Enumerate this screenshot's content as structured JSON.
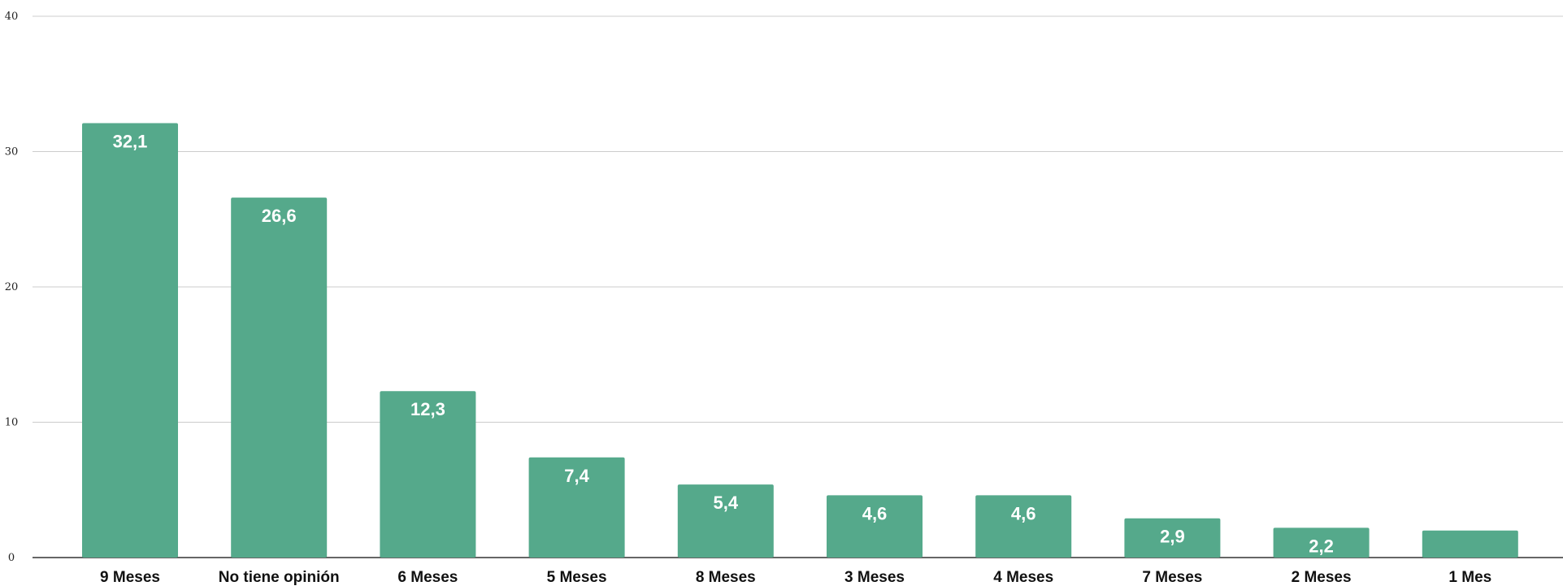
{
  "chart_data": {
    "type": "bar",
    "title": "",
    "xlabel": "",
    "ylabel": "",
    "categories": [
      "9 Meses",
      "No tiene opinión",
      "6 Meses",
      "5 Meses",
      "8 Meses",
      "3 Meses",
      "4 Meses",
      "7 Meses",
      "2 Meses",
      "1 Mes"
    ],
    "values": [
      32.1,
      26.6,
      12.3,
      7.4,
      5.4,
      4.6,
      4.6,
      2.9,
      2.2,
      2.0
    ],
    "data_labels": [
      "32,1",
      "26,6",
      "12,3",
      "7,4",
      "5,4",
      "4,6",
      "4,6",
      "2,9",
      "2,2",
      ""
    ],
    "ylim": [
      0,
      40
    ],
    "yticks": [
      0,
      10,
      20,
      30,
      40
    ],
    "grid": true,
    "legend": "none",
    "bar_color": "#55a98b",
    "grid_color": "#cccccc",
    "axis_color": "#333333"
  }
}
